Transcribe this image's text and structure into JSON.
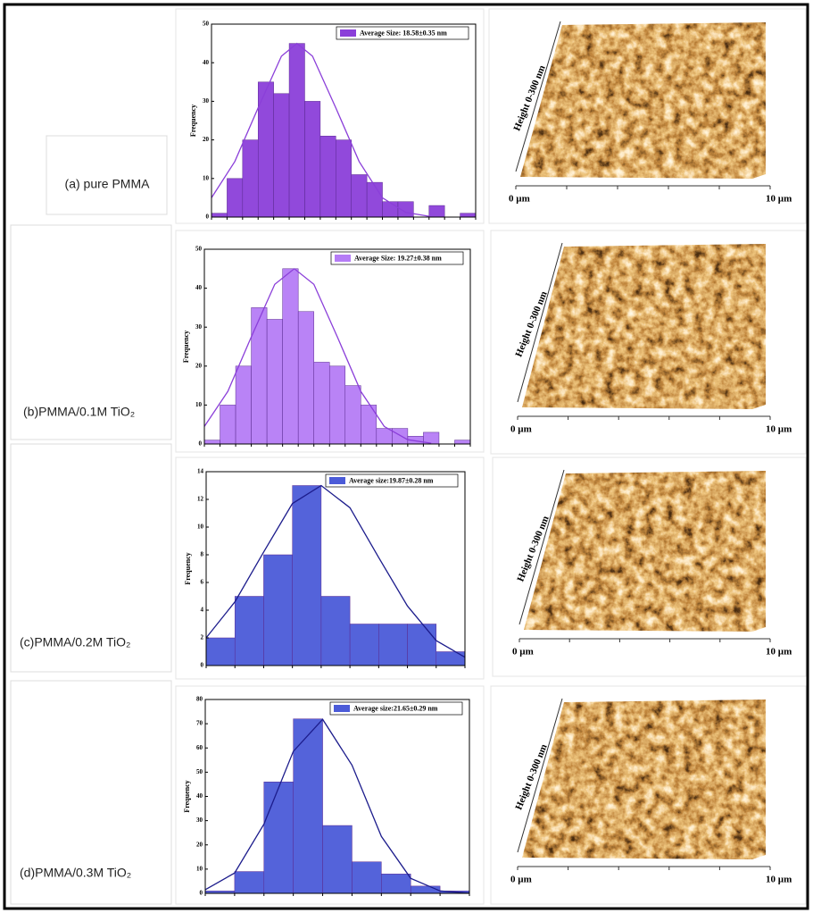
{
  "chart_data": [
    {
      "type": "histogram",
      "ylabel": "Frequency",
      "legend_position": "upper right",
      "color": "#8b3fd9",
      "series_name": "Average Size: 18.58±0.35 nm",
      "bins": [
        8,
        10,
        12,
        14,
        16,
        18,
        20,
        22,
        24,
        26,
        28,
        30,
        32,
        34,
        36,
        38,
        40,
        42
      ],
      "values": [
        1,
        10,
        20,
        35,
        32,
        45,
        30,
        21,
        20,
        11,
        9,
        4,
        4,
        0,
        3,
        0,
        1
      ],
      "xlim": [
        8,
        42
      ],
      "ylim": [
        0,
        50
      ],
      "yticks": [
        0,
        10,
        20,
        30,
        40,
        50
      ],
      "fit": {
        "color": "#8b3fd9",
        "x": [
          8,
          11,
          14,
          17,
          19,
          21,
          24,
          27,
          30,
          33,
          36
        ],
        "values": [
          5,
          14.4,
          28.3,
          41.7,
          45,
          41.7,
          28.3,
          14.4,
          5,
          1.2,
          0.2
        ]
      }
    },
    {
      "type": "histogram",
      "ylabel": "Frequency",
      "legend_position": "upper right",
      "color": "#b57cf6",
      "series_name": "Average Size: 19.27±0.38 nm",
      "bins": [
        8,
        10,
        12,
        14,
        16,
        18,
        20,
        22,
        24,
        26,
        28,
        30,
        32,
        34,
        36,
        38,
        40,
        42
      ],
      "values": [
        1,
        10,
        20,
        35,
        32,
        45,
        34,
        21,
        20,
        15,
        10,
        4,
        4,
        2,
        3,
        0,
        1
      ],
      "xlim": [
        8,
        42
      ],
      "ylim": [
        0,
        50
      ],
      "yticks": [
        0,
        10,
        20,
        30,
        40,
        50
      ],
      "fit": {
        "color": "#8b3fd9",
        "x": [
          8,
          11,
          14,
          17,
          19.5,
          22,
          25,
          28,
          31,
          34,
          37
        ],
        "values": [
          4.5,
          13.5,
          27.5,
          41,
          45,
          41,
          27.5,
          13.5,
          4.5,
          1.1,
          0.2
        ]
      }
    },
    {
      "type": "histogram",
      "ylabel": "Frequency",
      "legend_position": "upper right",
      "color": "#4b5bd8",
      "series_name": "Average size:19.87±0.28 nm",
      "bins": [
        12,
        14,
        16,
        18,
        20,
        22,
        24,
        26,
        28,
        30
      ],
      "values": [
        2,
        5,
        8,
        13,
        5,
        3,
        3,
        3,
        1
      ],
      "xlim": [
        12,
        30
      ],
      "ylim": [
        0,
        14
      ],
      "yticks": [
        0,
        2,
        4,
        6,
        8,
        10,
        12,
        14
      ],
      "fit": {
        "color": "#1c1c8c",
        "x": [
          12,
          14,
          16,
          18,
          20,
          22,
          24,
          26,
          28,
          30
        ],
        "values": [
          2,
          4.6,
          8.2,
          11.7,
          13,
          11.4,
          7.8,
          4.3,
          1.8,
          0.6
        ]
      }
    },
    {
      "type": "histogram",
      "ylabel": "Frequency",
      "legend_position": "upper right",
      "color": "#4b5bd8",
      "series_name": "Average size:21.65±0.29 nm",
      "bins": [
        14,
        16,
        18,
        20,
        22,
        24,
        26,
        28,
        30,
        32
      ],
      "values": [
        1,
        9,
        46,
        72,
        28,
        13,
        8,
        3,
        1
      ],
      "xlim": [
        14,
        32
      ],
      "ylim": [
        0,
        80
      ],
      "yticks": [
        0,
        10,
        20,
        30,
        40,
        50,
        60,
        70,
        80
      ],
      "fit": {
        "color": "#1c1c8c",
        "x": [
          14,
          16,
          18,
          20,
          22,
          24,
          26,
          28,
          30,
          32
        ],
        "values": [
          1.5,
          8.4,
          28.6,
          58.6,
          71.8,
          52.9,
          23.5,
          6.2,
          1,
          0.1
        ]
      }
    }
  ],
  "panels": [
    {
      "label": "(a) pure PMMA",
      "afm": {
        "height_label": "Height 0-300 nm",
        "x_start": "0 µm",
        "x_end": "10 µm"
      }
    },
    {
      "label": "(b)PMMA/0.1M TiO₂",
      "afm": {
        "height_label": "Height 0-300 nm",
        "x_start": "0 µm",
        "x_end": "10 µm"
      }
    },
    {
      "label": "(c)PMMA/0.2M TiO₂",
      "afm": {
        "height_label": "Height 0-300 nm",
        "x_start": "0 µm",
        "x_end": "10 µm"
      }
    },
    {
      "label": "(d)PMMA/0.3M TiO₂",
      "afm": {
        "height_label": "Height 0-300 nm",
        "x_start": "0 µm",
        "x_end": "10 µm"
      }
    }
  ]
}
